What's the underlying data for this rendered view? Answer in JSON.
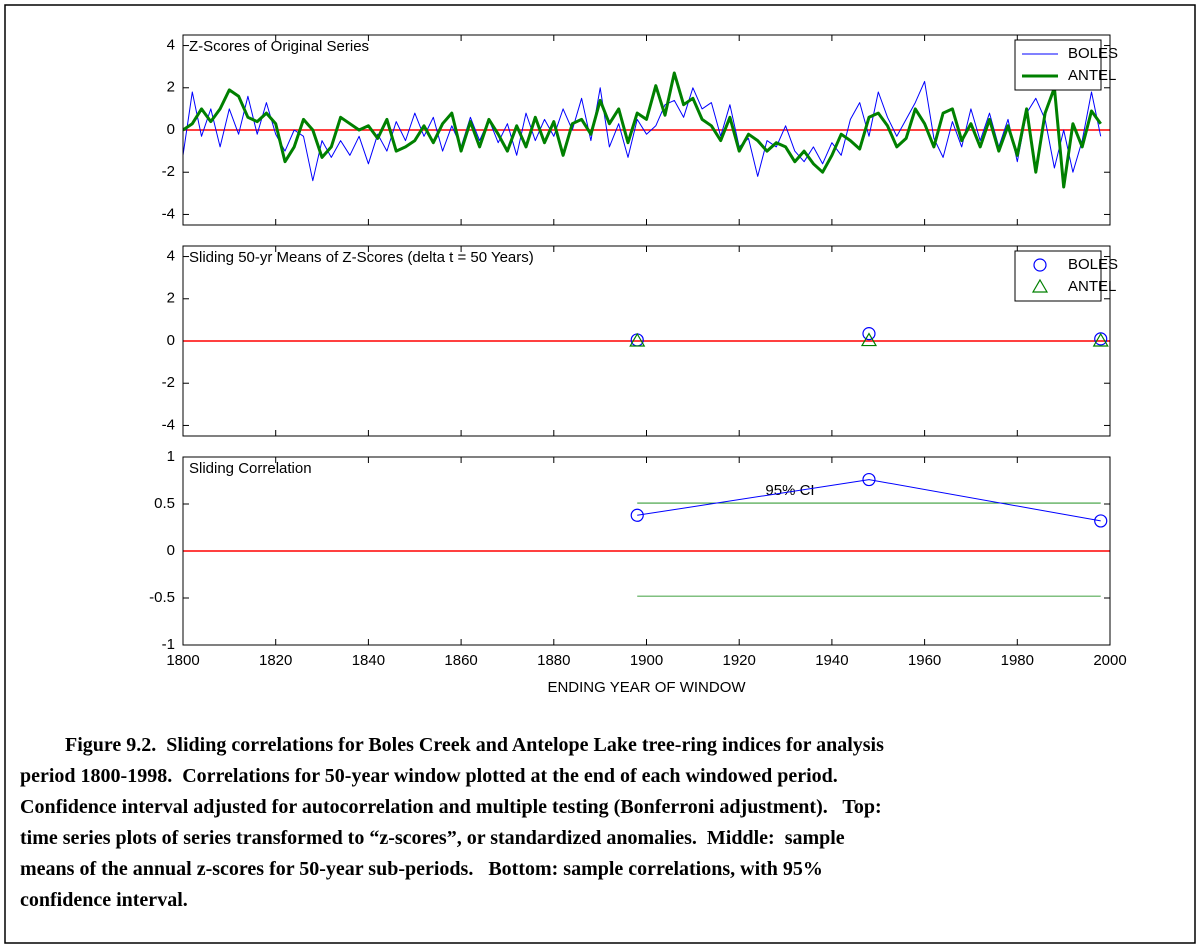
{
  "chart_data": [
    {
      "type": "line",
      "title": "Z-Scores of Original Series",
      "xlim": [
        1800,
        2000
      ],
      "ylim": [
        -4.5,
        4.5
      ],
      "yticks": [
        4,
        2,
        0,
        -2,
        -4
      ],
      "hline": 0,
      "hline_color": "#ff0000",
      "legend": "upper right",
      "x": [
        1800,
        1802,
        1804,
        1806,
        1808,
        1810,
        1812,
        1814,
        1816,
        1818,
        1820,
        1822,
        1824,
        1826,
        1828,
        1830,
        1832,
        1834,
        1836,
        1838,
        1840,
        1842,
        1844,
        1846,
        1848,
        1850,
        1852,
        1854,
        1856,
        1858,
        1860,
        1862,
        1864,
        1866,
        1868,
        1870,
        1872,
        1874,
        1876,
        1878,
        1880,
        1882,
        1884,
        1886,
        1888,
        1890,
        1892,
        1894,
        1896,
        1898,
        1900,
        1902,
        1904,
        1906,
        1908,
        1910,
        1912,
        1914,
        1916,
        1918,
        1920,
        1922,
        1924,
        1926,
        1928,
        1930,
        1932,
        1934,
        1936,
        1938,
        1940,
        1942,
        1944,
        1946,
        1948,
        1950,
        1952,
        1954,
        1956,
        1958,
        1960,
        1962,
        1964,
        1966,
        1968,
        1970,
        1972,
        1974,
        1976,
        1978,
        1980,
        1982,
        1984,
        1986,
        1988,
        1990,
        1992,
        1994,
        1996,
        1998
      ],
      "series": [
        {
          "name": "BOLES",
          "color": "#0000ff",
          "width": 1,
          "values": [
            -1.2,
            1.8,
            -0.3,
            1.0,
            -0.8,
            1.0,
            -0.2,
            1.6,
            -0.2,
            1.3,
            -0.2,
            -1.0,
            0,
            -0.3,
            -2.4,
            -0.5,
            -1.3,
            -0.5,
            -1.2,
            -0.3,
            -1.6,
            -0.2,
            -1.0,
            0.4,
            -0.5,
            0.8,
            -0.3,
            0.6,
            -1.0,
            0.2,
            -0.8,
            0.6,
            -0.5,
            0.5,
            -0.6,
            0.3,
            -1.2,
            0.8,
            -0.5,
            0.5,
            -0.3,
            1.0,
            0,
            1.5,
            -0.5,
            2.0,
            -0.8,
            0.3,
            -1.3,
            0.5,
            -0.2,
            0.2,
            1.2,
            1.4,
            0.6,
            2.0,
            1.0,
            1.3,
            -0.3,
            1.2,
            -0.8,
            -0.4,
            -2.2,
            -0.5,
            -0.8,
            0.2,
            -1.0,
            -1.5,
            -0.8,
            -1.6,
            -0.6,
            -1.2,
            0.5,
            1.3,
            -0.3,
            1.8,
            0.6,
            -0.3,
            0.5,
            1.3,
            2.3,
            -0.4,
            -1.3,
            0.4,
            -0.8,
            1.0,
            -0.5,
            0.8,
            -0.8,
            0.5,
            -1.5,
            0.8,
            1.5,
            0.5,
            -1.8,
            0,
            -2.0,
            -0.5,
            1.8,
            -0.3
          ]
        },
        {
          "name": "ANTEL",
          "color": "#008000",
          "width": 3,
          "values": [
            0,
            0.3,
            1.0,
            0.4,
            1.0,
            1.9,
            1.6,
            0.6,
            0.4,
            0.8,
            0.3,
            -1.5,
            -0.8,
            0.5,
            0,
            -1.3,
            -0.8,
            0.6,
            0.3,
            0,
            0.2,
            -0.4,
            0.5,
            -1.0,
            -0.8,
            -0.5,
            0.2,
            -0.6,
            0.3,
            0.8,
            -1.0,
            0.4,
            -0.8,
            0.5,
            -0.2,
            -1.0,
            0.2,
            -0.8,
            0.6,
            -0.6,
            0.4,
            -1.2,
            0.3,
            0.5,
            -0.2,
            1.4,
            0.3,
            1.0,
            -0.6,
            0.8,
            0.5,
            2.1,
            0.7,
            2.7,
            1.2,
            1.5,
            0.5,
            0.2,
            -0.5,
            0.6,
            -1.0,
            -0.2,
            -0.5,
            -1.0,
            -0.6,
            -0.8,
            -1.5,
            -1.0,
            -1.6,
            -2.0,
            -1.2,
            -0.2,
            -0.5,
            -0.9,
            0.6,
            0.8,
            0.2,
            -0.8,
            -0.4,
            1.0,
            0.3,
            -0.8,
            0.8,
            1.0,
            -0.5,
            0.3,
            -0.8,
            0.5,
            -1.0,
            0.2,
            -1.2,
            1.0,
            -2.0,
            0.8,
            2.0,
            -2.7,
            0.3,
            -0.8,
            0.9,
            0.3
          ]
        }
      ]
    },
    {
      "type": "scatter",
      "title": "Sliding 50-yr Means of Z-Scores (delta t = 50 Years)",
      "xlim": [
        1800,
        2000
      ],
      "ylim": [
        -4.5,
        4.5
      ],
      "yticks": [
        4,
        2,
        0,
        -2,
        -4
      ],
      "hline": 0,
      "hline_color": "#ff0000",
      "legend": "upper right",
      "x": [
        1898,
        1948,
        1998
      ],
      "series": [
        {
          "name": "BOLES",
          "color": "#0000ff",
          "marker": "circle",
          "values": [
            0.05,
            0.35,
            0.1
          ]
        },
        {
          "name": "ANTEL",
          "color": "#008000",
          "marker": "triangle",
          "values": [
            0,
            0.02,
            0
          ]
        }
      ]
    },
    {
      "type": "line",
      "title": "Sliding Correlation",
      "xlabel": "ENDING YEAR OF WINDOW",
      "xlim": [
        1800,
        2000
      ],
      "ylim": [
        -1,
        1
      ],
      "xticks": [
        1800,
        1820,
        1840,
        1860,
        1880,
        1900,
        1920,
        1940,
        1960,
        1980,
        2000
      ],
      "yticks": [
        1,
        0.5,
        0,
        -0.5,
        -1
      ],
      "hline": 0,
      "hline_color": "#ff0000",
      "x": [
        1898,
        1948,
        1998
      ],
      "series": [
        {
          "color": "#0000ff",
          "width": 1,
          "marker": "circle",
          "values": [
            0.38,
            0.76,
            0.32
          ]
        }
      ],
      "ci": {
        "label": "95% CI",
        "x": [
          1898,
          1998
        ],
        "upper": 0.51,
        "lower": -0.48,
        "color": "#008000"
      }
    }
  ],
  "caption": [
    "Figure 9.2.  Sliding correlations for Boles Creek and Antelope Lake tree-ring indices for analysis",
    "period 1800-1998.  Correlations for 50-year window plotted at the end of each windowed period.",
    "Confidence interval adjusted for autocorrelation and multiple testing (Bonferroni adjustment).   Top:",
    "time series plots of series transformed to “z-scores”, or standardized anomalies.  Middle:  sample",
    "means of the annual z-scores for 50-year sub-periods.   Bottom: sample correlations, with 95%",
    "confidence interval."
  ]
}
